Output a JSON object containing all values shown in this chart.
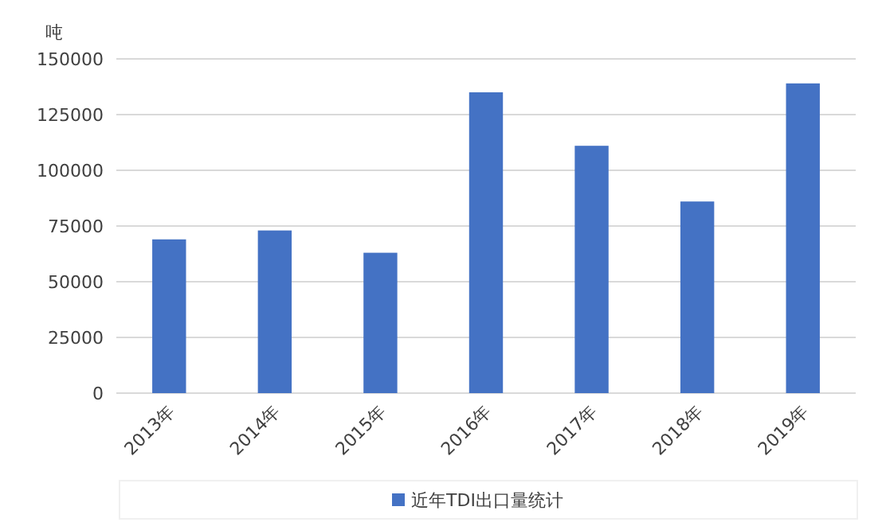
{
  "chart_data": {
    "type": "bar",
    "ylabel": "吨",
    "categories": [
      "2013年",
      "2014年",
      "2015年",
      "2016年",
      "2017年",
      "2018年",
      "2019年"
    ],
    "series": [
      {
        "name": "近年TDI出口量统计",
        "color": "#4472c4",
        "values": [
          69000,
          73000,
          63000,
          135000,
          111000,
          86000,
          139000
        ]
      }
    ],
    "ylim": [
      0,
      150000
    ],
    "yticks": [
      0,
      25000,
      50000,
      75000,
      100000,
      125000,
      150000
    ],
    "grid": "y",
    "legend": "bottom"
  }
}
